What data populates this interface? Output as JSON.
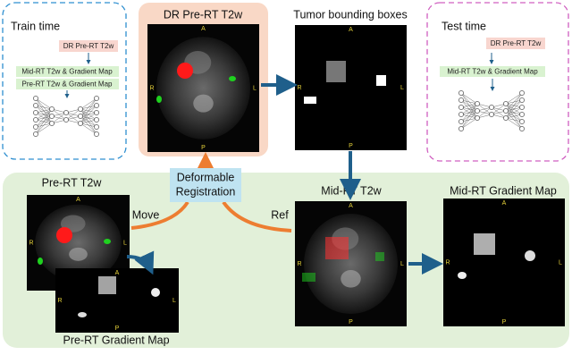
{
  "train_panel": {
    "title": "Train time",
    "input": "DR Pre-RT T2w",
    "items": [
      "Mid-RT T2w & Gradient Map",
      "Pre-RT T2w & Gradient Map"
    ]
  },
  "test_panel": {
    "title": "Test time",
    "input": "DR Pre-RT T2w",
    "items": [
      "Mid-RT T2w & Gradient Map"
    ]
  },
  "images": {
    "dr_pre": "DR Pre-RT T2w",
    "bbox": "Tumor bounding boxes",
    "pre": "Pre-RT T2w",
    "pre_grad": "Pre-RT Gradient Map",
    "mid": "Mid-RT T2w",
    "mid_grad": "Mid-RT Gradient Map"
  },
  "registration": [
    "Deformable",
    "Registration"
  ],
  "arrows": {
    "move": "Move",
    "ref": "Ref"
  },
  "orientation": {
    "top": "A",
    "bottom": "P",
    "left": "R",
    "right": "L"
  }
}
